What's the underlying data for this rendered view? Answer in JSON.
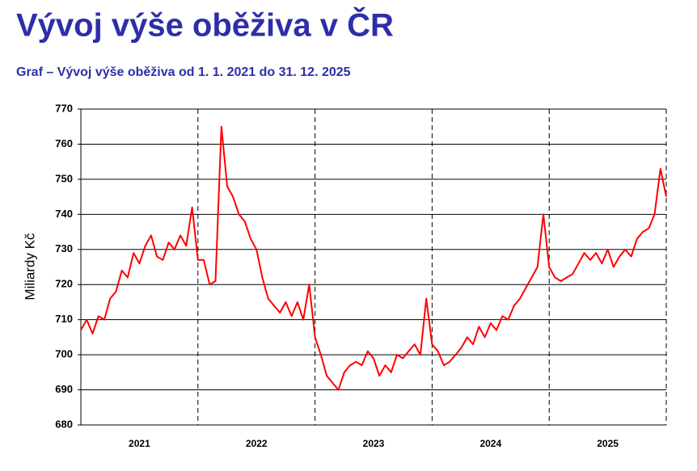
{
  "chart_data": {
    "type": "line",
    "title": "Vývoj výše oběživa v ČR",
    "subtitle": "Graf – Vývoj výše oběživa od 1. 1. 2021 do 31. 12. 2025",
    "y_label": "Miliardy Kč",
    "categories": [
      2021,
      2022,
      2023,
      2024,
      2025
    ],
    "xlim": [
      2021,
      2026
    ],
    "xticks": [
      2022,
      2023,
      2024,
      2025,
      2026
    ],
    "ylim": [
      680,
      770
    ],
    "yticks": [
      680,
      690,
      700,
      710,
      720,
      730,
      740,
      750,
      760,
      770
    ],
    "grid": true,
    "series": [
      {
        "color": "#ff0000",
        "x": [
          2021.0,
          2021.05,
          2021.1,
          2021.15,
          2021.2,
          2021.25,
          2021.3,
          2021.35,
          2021.4,
          2021.45,
          2021.5,
          2021.55,
          2021.6,
          2021.65,
          2021.7,
          2021.75,
          2021.8,
          2021.85,
          2021.9,
          2021.95,
          2022.0,
          2022.05,
          2022.1,
          2022.15,
          2022.2,
          2022.25,
          2022.3,
          2022.35,
          2022.4,
          2022.45,
          2022.5,
          2022.55,
          2022.6,
          2022.65,
          2022.7,
          2022.75,
          2022.8,
          2022.85,
          2022.9,
          2022.95,
          2023.0,
          2023.05,
          2023.1,
          2023.15,
          2023.2,
          2023.25,
          2023.3,
          2023.35,
          2023.4,
          2023.45,
          2023.5,
          2023.55,
          2023.6,
          2023.65,
          2023.7,
          2023.75,
          2023.8,
          2023.85,
          2023.9,
          2023.95,
          2024.0,
          2024.05,
          2024.1,
          2024.15,
          2024.2,
          2024.25,
          2024.3,
          2024.35,
          2024.4,
          2024.45,
          2024.5,
          2024.55,
          2024.6,
          2024.65,
          2024.7,
          2024.75,
          2024.8,
          2024.85,
          2024.9,
          2024.95,
          2025.0,
          2025.05,
          2025.1,
          2025.15,
          2025.2,
          2025.25,
          2025.3,
          2025.35,
          2025.4,
          2025.45,
          2025.5,
          2025.55,
          2025.6,
          2025.65,
          2025.7,
          2025.75,
          2025.8,
          2025.85,
          2025.9,
          2025.95,
          2026.0
        ],
        "values": [
          707,
          710,
          706,
          711,
          710,
          716,
          718,
          724,
          722,
          729,
          726,
          731,
          734,
          728,
          727,
          732,
          730,
          734,
          731,
          742,
          727,
          727,
          720,
          721,
          765,
          748,
          745,
          740,
          738,
          733,
          730,
          722,
          716,
          714,
          712,
          715,
          711,
          715,
          710,
          720,
          705,
          700,
          694,
          692,
          690,
          695,
          697,
          698,
          697,
          701,
          699,
          694,
          697,
          695,
          700,
          699,
          701,
          703,
          700,
          716,
          703,
          701,
          697,
          698,
          700,
          702,
          705,
          703,
          708,
          705,
          709,
          707,
          711,
          710,
          714,
          716,
          719,
          722,
          725,
          740,
          725,
          722,
          721,
          722,
          723,
          726,
          729,
          727,
          729,
          726,
          730,
          725,
          728,
          730,
          728,
          733,
          735,
          736,
          740,
          753,
          745
        ]
      }
    ]
  }
}
